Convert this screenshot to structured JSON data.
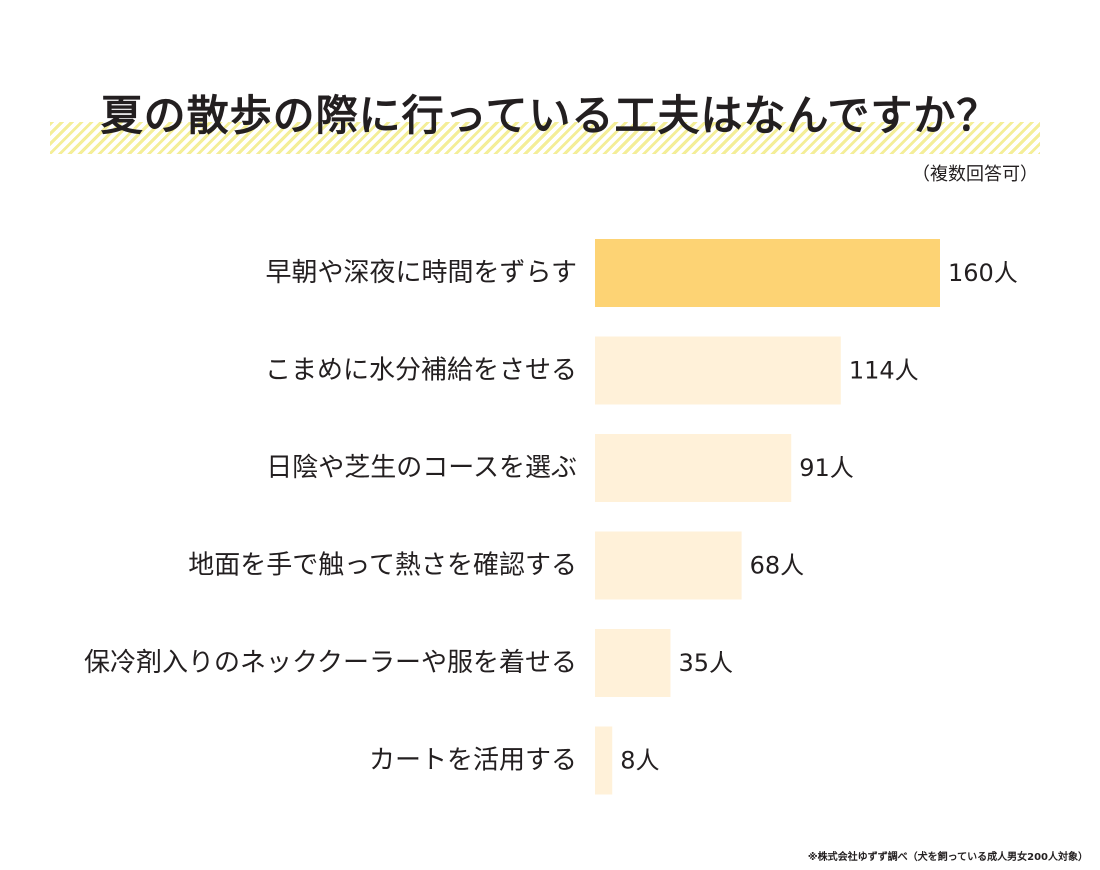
{
  "header": {
    "title": "夏の散歩の際に行っている工夫はなんですか？",
    "subtitle": "（複数回答可）"
  },
  "footer": {
    "source": "※株式会社ゆずず調べ（犬を飼っている成人男女200人対象）"
  },
  "colors": {
    "highlight_bar": "#fdd374",
    "bar": "#fff1d9",
    "title_stripe": "#f4ee98"
  },
  "chart_data": {
    "type": "bar",
    "orientation": "horizontal",
    "categories": [
      "早朝や深夜に時間をずらす",
      "こまめに水分補給をさせる",
      "日陰や芝生のコースを選ぶ",
      "地面を手で触って熱さを確認する",
      "保冷剤入りのネッククーラーや服を着せる",
      "カートを活用する"
    ],
    "values": [
      160,
      114,
      91,
      68,
      35,
      8
    ],
    "value_labels": [
      "160人",
      "114人",
      "91人",
      "68人",
      "35人",
      "8人"
    ],
    "highlight_index": 0,
    "xlim": [
      0,
      160
    ],
    "grid": false,
    "legend": "none"
  }
}
